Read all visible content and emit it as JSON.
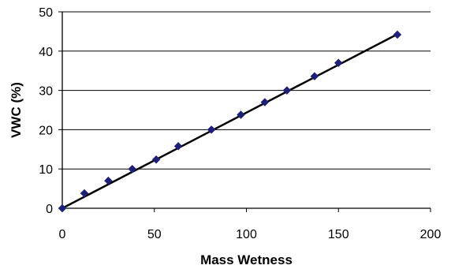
{
  "chart_data": {
    "type": "scatter",
    "title": "",
    "xlabel": "Mass Wetness",
    "ylabel": "VWC (%)",
    "xlim": [
      0,
      200
    ],
    "ylim": [
      0,
      50
    ],
    "x_ticks": [
      0,
      50,
      100,
      150,
      200
    ],
    "y_ticks": [
      0,
      10,
      20,
      30,
      40,
      50
    ],
    "grid": {
      "horizontal": true,
      "vertical": false
    },
    "legend": "none",
    "series": [
      {
        "marker": "diamond",
        "color": "#1f1f7a",
        "points": [
          {
            "x": 0,
            "y": 0
          },
          {
            "x": 12,
            "y": 3.8
          },
          {
            "x": 25,
            "y": 7.0
          },
          {
            "x": 38,
            "y": 10.0
          },
          {
            "x": 51,
            "y": 12.4
          },
          {
            "x": 63,
            "y": 15.8
          },
          {
            "x": 81,
            "y": 20.0
          },
          {
            "x": 97,
            "y": 23.8
          },
          {
            "x": 110,
            "y": 27.0
          },
          {
            "x": 122,
            "y": 30.0
          },
          {
            "x": 137,
            "y": 33.6
          },
          {
            "x": 150,
            "y": 37.0
          },
          {
            "x": 182,
            "y": 44.2
          }
        ]
      }
    ],
    "trendline": {
      "color": "#000000",
      "from": {
        "x": 0,
        "y": 0
      },
      "to": {
        "x": 182,
        "y": 44.3
      }
    }
  }
}
